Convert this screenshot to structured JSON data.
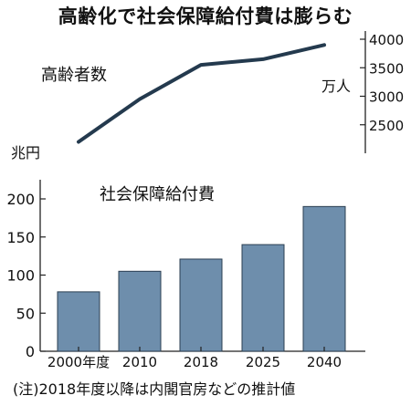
{
  "figure": {
    "title": "高齢化で社会保障給付費は膨らむ",
    "note": "(注)2018年度以降は内閣官房などの推計値"
  },
  "chart_data": [
    {
      "type": "line",
      "series_label": "高齢者数",
      "unit": "万人",
      "x": [
        "2000年度",
        "2010",
        "2018",
        "2025",
        "2040"
      ],
      "y": [
        2200,
        2950,
        3550,
        3650,
        3900
      ],
      "ylim": [
        2000,
        4000
      ],
      "yticks": [
        2500,
        3000,
        3500,
        4000
      ],
      "axis_side": "right"
    },
    {
      "type": "bar",
      "series_label": "社会保障給付費",
      "unit": "兆円",
      "categories": [
        "2000年度",
        "2010",
        "2018",
        "2025",
        "2040"
      ],
      "values": [
        78,
        105,
        121,
        140,
        190
      ],
      "ylim": [
        0,
        200
      ],
      "yticks": [
        0,
        50,
        100,
        150,
        200
      ],
      "axis_side": "left"
    }
  ],
  "colors": {
    "bar_fill": "#6e8eac",
    "bar_stroke": "#2b3f52",
    "line": "#243a4e",
    "axis": "#222222"
  }
}
